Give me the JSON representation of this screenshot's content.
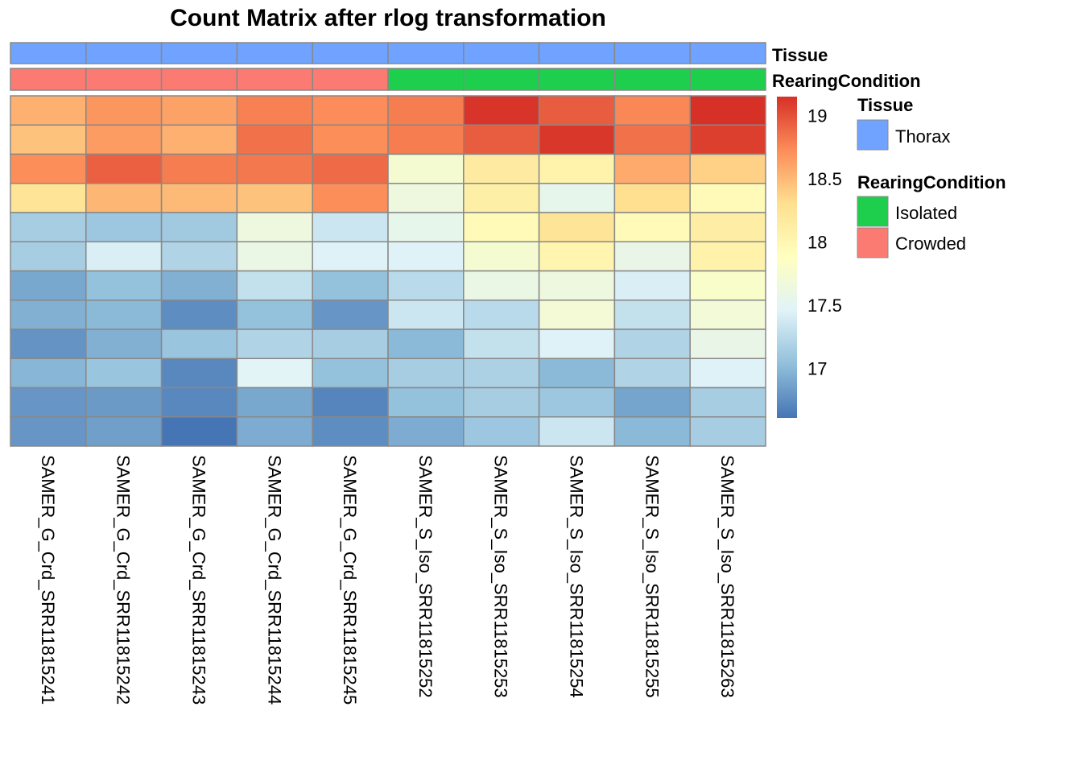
{
  "chart_data": {
    "type": "heatmap",
    "title": "Count Matrix after rlog transformation",
    "columns": [
      "SAMER_G_Crd_SRR11815241",
      "SAMER_G_Crd_SRR11815242",
      "SAMER_G_Crd_SRR11815243",
      "SAMER_G_Crd_SRR11815244",
      "SAMER_G_Crd_SRR11815245",
      "SAMER_S_Iso_SRR11815252",
      "SAMER_S_Iso_SRR11815253",
      "SAMER_S_Iso_SRR11815254",
      "SAMER_S_Iso_SRR11815255",
      "SAMER_S_Iso_SRR11815263"
    ],
    "values": [
      [
        18.55,
        18.68,
        18.62,
        18.78,
        18.73,
        18.8,
        19.13,
        18.95,
        18.75,
        19.15
      ],
      [
        18.45,
        18.65,
        18.55,
        18.85,
        18.72,
        18.8,
        18.95,
        19.12,
        18.85,
        19.08
      ],
      [
        18.72,
        18.93,
        18.8,
        18.82,
        18.88,
        17.75,
        18.15,
        18.05,
        18.58,
        18.38
      ],
      [
        18.25,
        18.52,
        18.5,
        18.45,
        18.72,
        17.65,
        18.1,
        17.55,
        18.3,
        17.95
      ],
      [
        17.15,
        17.1,
        17.12,
        17.65,
        17.35,
        17.55,
        17.95,
        18.25,
        17.95,
        18.12
      ],
      [
        17.15,
        17.42,
        17.2,
        17.6,
        17.45,
        17.45,
        17.75,
        18.02,
        17.58,
        18.05
      ],
      [
        16.9,
        17.05,
        16.95,
        17.3,
        17.05,
        17.25,
        17.6,
        17.65,
        17.42,
        17.8
      ],
      [
        16.95,
        17.0,
        16.75,
        17.05,
        16.8,
        17.35,
        17.25,
        17.72,
        17.3,
        17.7
      ],
      [
        16.78,
        16.95,
        17.08,
        17.2,
        17.15,
        17.0,
        17.3,
        17.45,
        17.2,
        17.58
      ],
      [
        16.98,
        17.08,
        16.72,
        17.48,
        17.05,
        17.15,
        17.18,
        17.0,
        17.2,
        17.45
      ],
      [
        16.8,
        16.82,
        16.72,
        16.9,
        16.7,
        17.05,
        17.15,
        17.1,
        16.88,
        17.15
      ],
      [
        16.8,
        16.85,
        16.6,
        16.92,
        16.75,
        16.92,
        17.1,
        17.35,
        17.0,
        17.15
      ]
    ],
    "color_range": [
      16.61,
      19.15
    ],
    "palette": [
      "#4575B4",
      "#91BFDB",
      "#E0F3F8",
      "#FFFFBF",
      "#FEE090",
      "#FC8D59",
      "#D73027"
    ],
    "colorbar_ticks": [
      19,
      18.5,
      18,
      17.5,
      17
    ],
    "colorbar_tick_labels": [
      "19",
      "18.5",
      "18",
      "17.5",
      "17"
    ],
    "annotations": {
      "Tissue": [
        "Thorax",
        "Thorax",
        "Thorax",
        "Thorax",
        "Thorax",
        "Thorax",
        "Thorax",
        "Thorax",
        "Thorax",
        "Thorax"
      ],
      "RearingCondition": [
        "Crowded",
        "Crowded",
        "Crowded",
        "Crowded",
        "Crowded",
        "Isolated",
        "Isolated",
        "Isolated",
        "Isolated",
        "Isolated"
      ]
    },
    "annotation_labels": {
      "tissue": "Tissue",
      "rearing": "RearingCondition"
    },
    "annotation_colors": {
      "Thorax": "#6FA3FF",
      "Isolated": "#1ECF4E",
      "Crowded": "#FB7B73"
    },
    "legend": {
      "tissue_title": "Tissue",
      "tissue_items": [
        "Thorax"
      ],
      "rearing_title": "RearingCondition",
      "rearing_items": [
        "Isolated",
        "Crowded"
      ],
      "placement": "right"
    }
  }
}
